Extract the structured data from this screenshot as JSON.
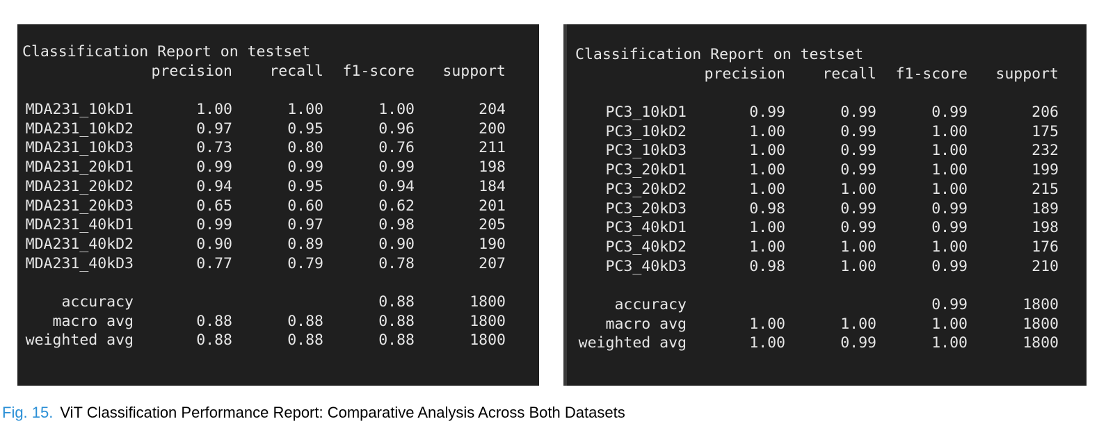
{
  "reports": [
    {
      "title": "Classification Report on testset",
      "headers": [
        "",
        "precision",
        "recall",
        "f1-score",
        "support"
      ],
      "rows": [
        [
          "MDA231_10kD1",
          "1.00",
          "1.00",
          "1.00",
          "204"
        ],
        [
          "MDA231_10kD2",
          "0.97",
          "0.95",
          "0.96",
          "200"
        ],
        [
          "MDA231_10kD3",
          "0.73",
          "0.80",
          "0.76",
          "211"
        ],
        [
          "MDA231_20kD1",
          "0.99",
          "0.99",
          "0.99",
          "198"
        ],
        [
          "MDA231_20kD2",
          "0.94",
          "0.95",
          "0.94",
          "184"
        ],
        [
          "MDA231_20kD3",
          "0.65",
          "0.60",
          "0.62",
          "201"
        ],
        [
          "MDA231_40kD1",
          "0.99",
          "0.97",
          "0.98",
          "205"
        ],
        [
          "MDA231_40kD2",
          "0.90",
          "0.89",
          "0.90",
          "190"
        ],
        [
          "MDA231_40kD3",
          "0.77",
          "0.79",
          "0.78",
          "207"
        ]
      ],
      "summary": [
        [
          "accuracy",
          "",
          "",
          "0.88",
          "1800"
        ],
        [
          "macro avg",
          "0.88",
          "0.88",
          "0.88",
          "1800"
        ],
        [
          "weighted avg",
          "0.88",
          "0.88",
          "0.88",
          "1800"
        ]
      ]
    },
    {
      "title": "Classification Report on testset",
      "headers": [
        "",
        "precision",
        "recall",
        "f1-score",
        "support"
      ],
      "rows": [
        [
          "PC3_10kD1",
          "0.99",
          "0.99",
          "0.99",
          "206"
        ],
        [
          "PC3_10kD2",
          "1.00",
          "0.99",
          "1.00",
          "175"
        ],
        [
          "PC3_10kD3",
          "1.00",
          "0.99",
          "1.00",
          "232"
        ],
        [
          "PC3_20kD1",
          "1.00",
          "0.99",
          "1.00",
          "199"
        ],
        [
          "PC3_20kD2",
          "1.00",
          "1.00",
          "1.00",
          "215"
        ],
        [
          "PC3_20kD3",
          "0.98",
          "0.99",
          "0.99",
          "189"
        ],
        [
          "PC3_40kD1",
          "1.00",
          "0.99",
          "0.99",
          "198"
        ],
        [
          "PC3_40kD2",
          "1.00",
          "1.00",
          "1.00",
          "176"
        ],
        [
          "PC3_40kD3",
          "0.98",
          "1.00",
          "0.99",
          "210"
        ]
      ],
      "summary": [
        [
          "accuracy",
          "",
          "",
          "0.99",
          "1800"
        ],
        [
          "macro avg",
          "1.00",
          "1.00",
          "1.00",
          "1800"
        ],
        [
          "weighted avg",
          "1.00",
          "0.99",
          "1.00",
          "1800"
        ]
      ]
    }
  ],
  "caption": {
    "label": "Fig. 15.",
    "text": "ViT Classification Performance Report: Comparative Analysis Across Both Datasets"
  },
  "colors": {
    "panel_bg": "#1f1f1f",
    "panel_text": "#e6e6e6",
    "caption_label": "#2a8fd6"
  }
}
